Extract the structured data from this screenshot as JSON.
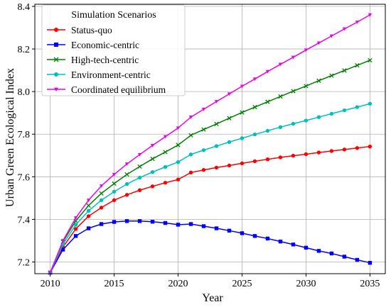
{
  "chart_data": {
    "type": "line",
    "title": "",
    "xlabel": "Year",
    "ylabel": "Urban Green Ecological Index",
    "xlim": [
      2008.8,
      2036.2
    ],
    "ylim": [
      7.145,
      8.41
    ],
    "xticks": [
      2010,
      2015,
      2020,
      2025,
      2030,
      2035
    ],
    "xtick_labels": [
      "2010",
      "2015",
      "2020",
      "2025",
      "2030",
      "2035"
    ],
    "yticks": [
      7.2,
      7.4,
      7.6,
      7.8,
      8.0,
      8.2,
      8.4
    ],
    "ytick_labels": [
      "7.2",
      "7.4",
      "7.6",
      "7.8",
      "8.0",
      "8.2",
      "8.4"
    ],
    "grid": true,
    "legend_title": "Simulation Scenarios",
    "legend_position": "top-left",
    "x": [
      2010,
      2011,
      2012,
      2013,
      2014,
      2015,
      2016,
      2017,
      2018,
      2019,
      2020,
      2021,
      2022,
      2023,
      2024,
      2025,
      2026,
      2027,
      2028,
      2029,
      2030,
      2031,
      2032,
      2033,
      2034,
      2035
    ],
    "series": [
      {
        "name": "Status-quo",
        "color": "#ff0000",
        "marker": "circle",
        "values": [
          7.15,
          7.27,
          7.355,
          7.415,
          7.455,
          7.49,
          7.515,
          7.537,
          7.555,
          7.572,
          7.587,
          7.62,
          7.632,
          7.643,
          7.653,
          7.663,
          7.673,
          7.682,
          7.691,
          7.699,
          7.706,
          7.714,
          7.721,
          7.728,
          7.735,
          7.742
        ]
      },
      {
        "name": "Economic-centric",
        "color": "#0000ff",
        "marker": "square",
        "values": [
          7.15,
          7.258,
          7.322,
          7.358,
          7.378,
          7.388,
          7.392,
          7.392,
          7.389,
          7.383,
          7.375,
          7.378,
          7.368,
          7.358,
          7.347,
          7.335,
          7.322,
          7.31,
          7.296,
          7.282,
          7.267,
          7.252,
          7.24,
          7.225,
          7.21,
          7.196
        ]
      },
      {
        "name": "High-tech-centric",
        "color": "#008000",
        "marker": "x",
        "values": [
          7.15,
          7.295,
          7.393,
          7.465,
          7.522,
          7.568,
          7.611,
          7.648,
          7.684,
          7.716,
          7.749,
          7.795,
          7.822,
          7.848,
          7.875,
          7.902,
          7.927,
          7.952,
          7.977,
          8.002,
          8.026,
          8.051,
          8.075,
          8.099,
          8.123,
          8.147
        ]
      },
      {
        "name": "Environment-centric",
        "color": "#00bfbf",
        "marker": "circle",
        "values": [
          7.15,
          7.283,
          7.375,
          7.44,
          7.49,
          7.53,
          7.566,
          7.596,
          7.622,
          7.646,
          7.669,
          7.705,
          7.725,
          7.744,
          7.763,
          7.781,
          7.799,
          7.816,
          7.833,
          7.849,
          7.864,
          7.88,
          7.896,
          7.912,
          7.927,
          7.943
        ]
      },
      {
        "name": "Coordinated equilibrium",
        "color": "#ee00ee",
        "marker": "triangle-down",
        "values": [
          7.15,
          7.3,
          7.407,
          7.49,
          7.557,
          7.611,
          7.66,
          7.704,
          7.747,
          7.788,
          7.829,
          7.88,
          7.917,
          7.953,
          7.989,
          8.025,
          8.059,
          8.094,
          8.128,
          8.161,
          8.195,
          8.228,
          8.261,
          8.294,
          8.326,
          8.36
        ]
      }
    ]
  }
}
